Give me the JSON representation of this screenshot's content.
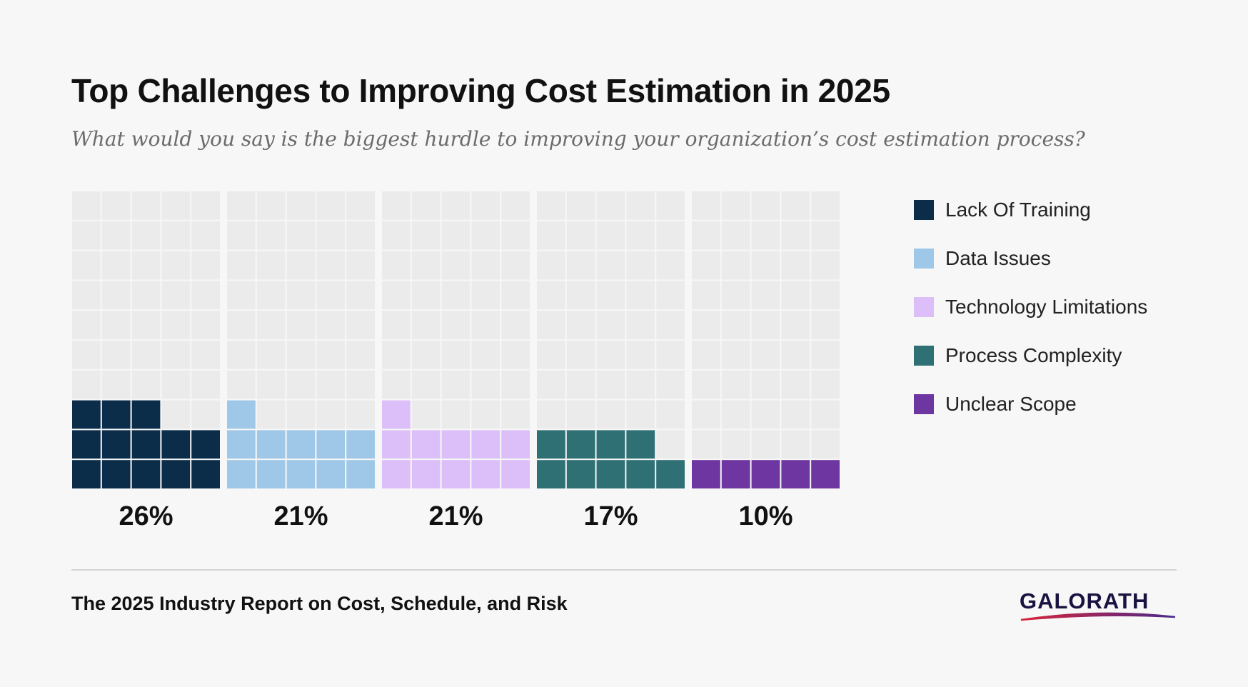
{
  "title": "Top Challenges to Improving Cost Estimation in 2025",
  "subtitle": "What would you say is the biggest hurdle to improving your organization’s cost estimation process?",
  "footer": {
    "report_title": "The 2025 Industry Report on Cost, Schedule, and Risk",
    "logo_text": "GALORATH"
  },
  "colors": {
    "empty_cell": "#ebebeb",
    "grid_line": "#f7f7f7",
    "logo_text": "#1a1240",
    "logo_swoosh_start": "#d8253a",
    "logo_swoosh_end": "#4a2a8a"
  },
  "chart_data": {
    "type": "waffle",
    "cells_per_column": 50,
    "grid": {
      "columns": 5,
      "rows": 10
    },
    "series": [
      {
        "name": "Lack Of Training",
        "value": 26,
        "label": "26%",
        "color": "#0c2d4a"
      },
      {
        "name": "Data Issues",
        "value": 21,
        "label": "21%",
        "color": "#9fc8e8"
      },
      {
        "name": "Technology Limitations",
        "value": 21,
        "label": "21%",
        "color": "#dcbff8"
      },
      {
        "name": "Process Complexity",
        "value": 17,
        "label": "17%",
        "color": "#2f7075"
      },
      {
        "name": "Unclear Scope",
        "value": 10,
        "label": "10%",
        "color": "#6e36a0"
      }
    ],
    "legend_position": "right"
  }
}
